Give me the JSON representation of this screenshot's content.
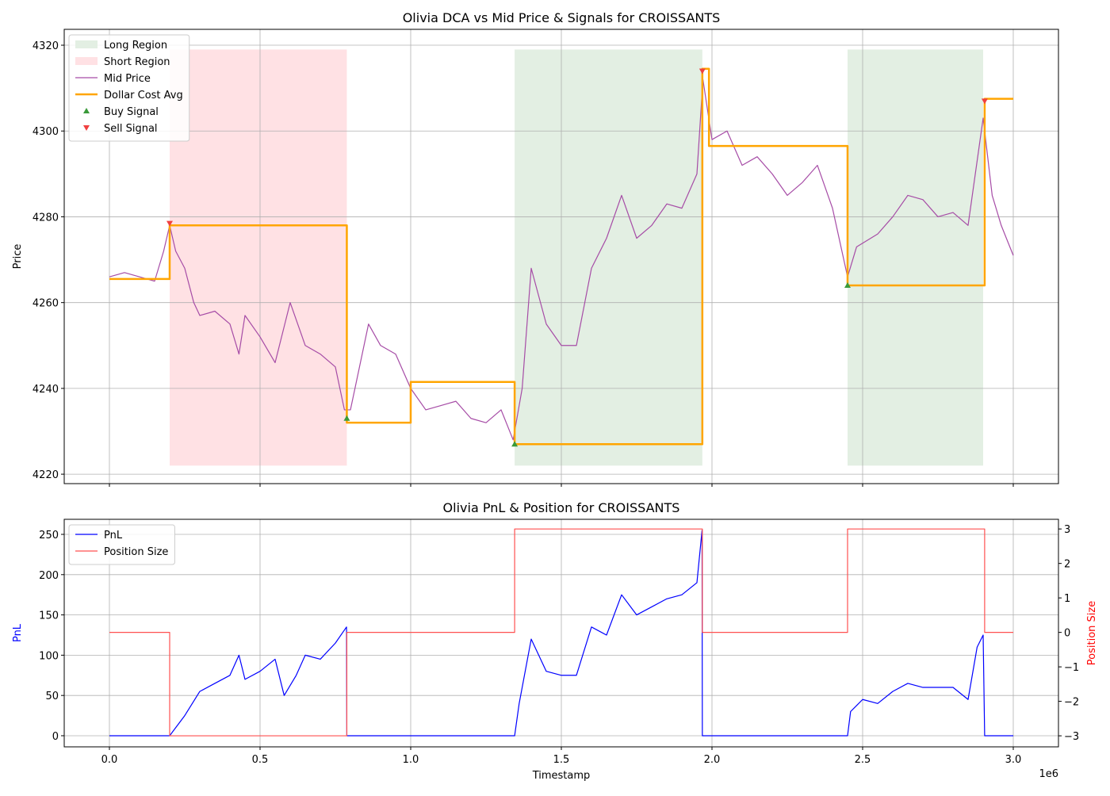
{
  "chart_data": [
    {
      "type": "line",
      "title": "Olivia DCA vs Mid Price & Signals for CROISSANTS",
      "ylabel": "Price",
      "xlim": [
        -150000,
        3150000
      ],
      "ylim": [
        4217.8,
        4323.7
      ],
      "xticks": [
        0,
        500000,
        1000000,
        1500000,
        2000000,
        2500000,
        3000000
      ],
      "yticks": [
        4220,
        4240,
        4260,
        4280,
        4300,
        4320
      ],
      "grid": true,
      "legend": "upper left",
      "regions": [
        {
          "name": "Long Region",
          "color": "#e3efe3",
          "spans": [
            [
              1345000,
              1968000
            ],
            [
              2450000,
              2900000
            ]
          ],
          "y_range": [
            4222,
            4319
          ]
        },
        {
          "name": "Short Region",
          "color": "#ffe1e4",
          "spans": [
            [
              200000,
              788000
            ]
          ],
          "y_range": [
            4222,
            4319
          ]
        }
      ],
      "series": [
        {
          "name": "Mid Price",
          "color": "#a64ca6",
          "width": 1.2,
          "x": [
            0,
            50000,
            100000,
            150000,
            180000,
            200000,
            220000,
            250000,
            280000,
            300000,
            350000,
            400000,
            430000,
            450000,
            500000,
            550000,
            600000,
            650000,
            700000,
            750000,
            780000,
            800000,
            830000,
            860000,
            900000,
            950000,
            1000000,
            1050000,
            1100000,
            1150000,
            1200000,
            1250000,
            1300000,
            1340000,
            1370000,
            1400000,
            1450000,
            1500000,
            1550000,
            1600000,
            1650000,
            1700000,
            1750000,
            1800000,
            1850000,
            1900000,
            1950000,
            1970000,
            2000000,
            2050000,
            2100000,
            2150000,
            2200000,
            2250000,
            2300000,
            2350000,
            2400000,
            2450000,
            2480000,
            2550000,
            2600000,
            2650000,
            2700000,
            2750000,
            2800000,
            2850000,
            2900000,
            2930000,
            2960000,
            3000000
          ],
          "values": [
            4266,
            4267,
            4266,
            4265,
            4272,
            4278,
            4272,
            4268,
            4260,
            4257,
            4258,
            4255,
            4248,
            4257,
            4252,
            4246,
            4260,
            4250,
            4248,
            4245,
            4235,
            4235,
            4245,
            4255,
            4250,
            4248,
            4240,
            4235,
            4236,
            4237,
            4233,
            4232,
            4235,
            4228,
            4240,
            4268,
            4255,
            4250,
            4250,
            4268,
            4275,
            4285,
            4275,
            4278,
            4283,
            4282,
            4290,
            4312,
            4298,
            4300,
            4292,
            4294,
            4290,
            4285,
            4288,
            4292,
            4282,
            4266,
            4273,
            4276,
            4280,
            4285,
            4284,
            4280,
            4281,
            4278,
            4303,
            4285,
            4278,
            4271
          ]
        },
        {
          "name": "Dollar Cost Avg",
          "color": "#ffa500",
          "width": 2.5,
          "x": [
            0,
            200000,
            200000,
            788000,
            788000,
            1000000,
            1000000,
            1345000,
            1345000,
            1968000,
            1968000,
            1990000,
            1990000,
            2450000,
            2450000,
            2905000,
            2905000,
            3000000
          ],
          "values": [
            4265.5,
            4265.5,
            4278,
            4278,
            4232,
            4232,
            4241.5,
            4241.5,
            4227,
            4227,
            4314.5,
            4314.5,
            4296.5,
            4296.5,
            4264,
            4264,
            4307.5,
            4307.5
          ]
        }
      ],
      "markers": [
        {
          "name": "Buy Signal",
          "color": "#3a9a3a",
          "marker": "^",
          "x": [
            788000,
            1345000,
            2450000
          ],
          "values": [
            4233,
            4227,
            4264
          ]
        },
        {
          "name": "Sell Signal",
          "color": "#f04040",
          "marker": "v",
          "x": [
            200000,
            1968000,
            2905000
          ],
          "values": [
            4278.5,
            4314,
            4307
          ]
        }
      ]
    },
    {
      "type": "line",
      "title": "Olivia PnL & Position for CROISSANTS",
      "xlabel": "Timestamp",
      "ylabel": "PnL",
      "ylabel_color": "#0000ff",
      "y2label": "Position Size",
      "y2label_color": "#ff0000",
      "x_offset_label": "1e6",
      "xlim": [
        -150000,
        3150000
      ],
      "ylim": [
        -13.8,
        268.7
      ],
      "y2lim": [
        -3.32,
        3.28
      ],
      "xticks": [
        {
          "value": 0,
          "label": "0.0"
        },
        {
          "value": 500000,
          "label": "0.5"
        },
        {
          "value": 1000000,
          "label": "1.0"
        },
        {
          "value": 1500000,
          "label": "1.5"
        },
        {
          "value": 2000000,
          "label": "2.0"
        },
        {
          "value": 2500000,
          "label": "2.5"
        },
        {
          "value": 3000000,
          "label": "3.0"
        }
      ],
      "yticks": [
        0,
        50,
        100,
        150,
        200,
        250
      ],
      "y2ticks": [
        {
          "value": -3,
          "label": "−3"
        },
        {
          "value": -2,
          "label": "−2"
        },
        {
          "value": -1,
          "label": "−1"
        },
        0,
        1,
        2,
        3
      ],
      "grid": true,
      "legend": "upper left",
      "series": [
        {
          "name": "PnL",
          "color": "#0000ff",
          "width": 1.2,
          "x": [
            0,
            200000,
            210000,
            250000,
            300000,
            350000,
            400000,
            430000,
            450000,
            500000,
            550000,
            580000,
            620000,
            650000,
            700000,
            750000,
            787000,
            788000,
            1000000,
            1345000,
            1360000,
            1400000,
            1450000,
            1500000,
            1550000,
            1600000,
            1650000,
            1700000,
            1750000,
            1800000,
            1850000,
            1900000,
            1950000,
            1967000,
            1968000,
            2450000,
            2460000,
            2500000,
            2550000,
            2600000,
            2650000,
            2700000,
            2750000,
            2800000,
            2850000,
            2880000,
            2900000,
            2905000,
            3000000
          ],
          "values": [
            0,
            0,
            5,
            25,
            55,
            65,
            75,
            100,
            70,
            80,
            95,
            50,
            75,
            100,
            95,
            115,
            135,
            0,
            0,
            0,
            40,
            120,
            80,
            75,
            75,
            135,
            125,
            175,
            150,
            160,
            170,
            175,
            190,
            255,
            0,
            0,
            30,
            45,
            40,
            55,
            65,
            60,
            60,
            60,
            45,
            110,
            125,
            0,
            0
          ]
        },
        {
          "name": "Position Size",
          "color": "#ff5050",
          "width": 1.2,
          "axis": "y2",
          "x": [
            0,
            200000,
            200000,
            788000,
            788000,
            1345000,
            1345000,
            1968000,
            1968000,
            2450000,
            2450000,
            2905000,
            2905000,
            3000000
          ],
          "values": [
            0,
            0,
            -3,
            -3,
            0,
            0,
            3,
            3,
            0,
            0,
            3,
            3,
            0,
            0
          ]
        }
      ]
    }
  ]
}
